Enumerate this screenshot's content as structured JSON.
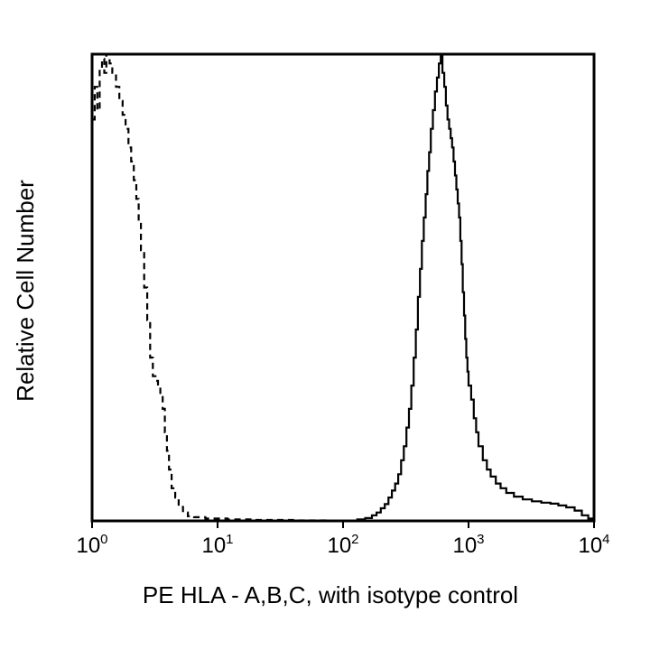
{
  "chart_data": {
    "type": "line",
    "title": "",
    "xlabel": "PE HLA - A,B,C, with isotype control",
    "ylabel": "Relative Cell Number",
    "x_scale": "log",
    "xlim": [
      1,
      10000
    ],
    "ylim": [
      0,
      100
    ],
    "x_ticks": [
      {
        "base": "10",
        "exp": "0",
        "value": 1
      },
      {
        "base": "10",
        "exp": "1",
        "value": 10
      },
      {
        "base": "10",
        "exp": "2",
        "value": 100
      },
      {
        "base": "10",
        "exp": "3",
        "value": 1000
      },
      {
        "base": "10",
        "exp": "4",
        "value": 10000
      }
    ],
    "grid": false,
    "legend": "none",
    "series": [
      {
        "style": "dashed",
        "color": "#000000",
        "points": [
          [
            1.0,
            86
          ],
          [
            1.05,
            93
          ],
          [
            1.1,
            88
          ],
          [
            1.15,
            97
          ],
          [
            1.2,
            99
          ],
          [
            1.25,
            96
          ],
          [
            1.3,
            100
          ],
          [
            1.38,
            98
          ],
          [
            1.45,
            96
          ],
          [
            1.55,
            93
          ],
          [
            1.65,
            90
          ],
          [
            1.75,
            87
          ],
          [
            1.85,
            84
          ],
          [
            1.95,
            80
          ],
          [
            2.05,
            77
          ],
          [
            2.15,
            73
          ],
          [
            2.25,
            69
          ],
          [
            2.35,
            64
          ],
          [
            2.45,
            58
          ],
          [
            2.6,
            50
          ],
          [
            2.75,
            43
          ],
          [
            2.9,
            35
          ],
          [
            3.05,
            31
          ],
          [
            3.2,
            30
          ],
          [
            3.35,
            29
          ],
          [
            3.5,
            27
          ],
          [
            3.65,
            24
          ],
          [
            3.8,
            19
          ],
          [
            3.95,
            15
          ],
          [
            4.1,
            11
          ],
          [
            4.3,
            7
          ],
          [
            4.6,
            5
          ],
          [
            4.9,
            3
          ],
          [
            5.3,
            1.8
          ],
          [
            5.8,
            1
          ],
          [
            6.5,
            0.8
          ],
          [
            8.0,
            0.5
          ],
          [
            12,
            0.3
          ],
          [
            20,
            0.2
          ],
          [
            40,
            0.1
          ],
          [
            80,
            0
          ]
        ]
      },
      {
        "style": "solid",
        "color": "#000000",
        "points": [
          [
            100,
            0
          ],
          [
            130,
            0.3
          ],
          [
            150,
            0.6
          ],
          [
            170,
            1.2
          ],
          [
            185,
            1.8
          ],
          [
            200,
            2.7
          ],
          [
            215,
            3.6
          ],
          [
            230,
            5
          ],
          [
            245,
            6.5
          ],
          [
            260,
            8
          ],
          [
            275,
            10
          ],
          [
            290,
            13
          ],
          [
            305,
            16
          ],
          [
            320,
            20
          ],
          [
            335,
            24
          ],
          [
            350,
            29
          ],
          [
            365,
            35
          ],
          [
            380,
            41
          ],
          [
            395,
            48
          ],
          [
            410,
            54
          ],
          [
            425,
            60
          ],
          [
            440,
            65
          ],
          [
            455,
            70
          ],
          [
            470,
            75
          ],
          [
            485,
            79
          ],
          [
            500,
            84
          ],
          [
            520,
            88
          ],
          [
            540,
            92
          ],
          [
            560,
            95
          ],
          [
            580,
            98
          ],
          [
            600,
            100
          ],
          [
            620,
            96
          ],
          [
            640,
            93
          ],
          [
            660,
            89
          ],
          [
            680,
            86
          ],
          [
            700,
            84
          ],
          [
            720,
            82
          ],
          [
            740,
            80
          ],
          [
            760,
            77
          ],
          [
            780,
            74
          ],
          [
            800,
            71
          ],
          [
            820,
            68
          ],
          [
            840,
            65
          ],
          [
            860,
            60
          ],
          [
            880,
            55
          ],
          [
            900,
            49
          ],
          [
            920,
            44
          ],
          [
            940,
            39
          ],
          [
            960,
            35
          ],
          [
            980,
            32
          ],
          [
            1000,
            29
          ],
          [
            1050,
            26
          ],
          [
            1100,
            22
          ],
          [
            1150,
            19
          ],
          [
            1200,
            16
          ],
          [
            1300,
            13
          ],
          [
            1400,
            11
          ],
          [
            1500,
            9.5
          ],
          [
            1650,
            8
          ],
          [
            1800,
            7
          ],
          [
            2000,
            6
          ],
          [
            2300,
            5.2
          ],
          [
            2700,
            4.6
          ],
          [
            3200,
            4.2
          ],
          [
            3800,
            3.9
          ],
          [
            4500,
            3.7
          ],
          [
            5200,
            3.3
          ],
          [
            6000,
            2.9
          ],
          [
            7000,
            2.2
          ],
          [
            8000,
            1.2
          ],
          [
            9000,
            0.5
          ],
          [
            10000,
            0
          ]
        ]
      }
    ]
  }
}
